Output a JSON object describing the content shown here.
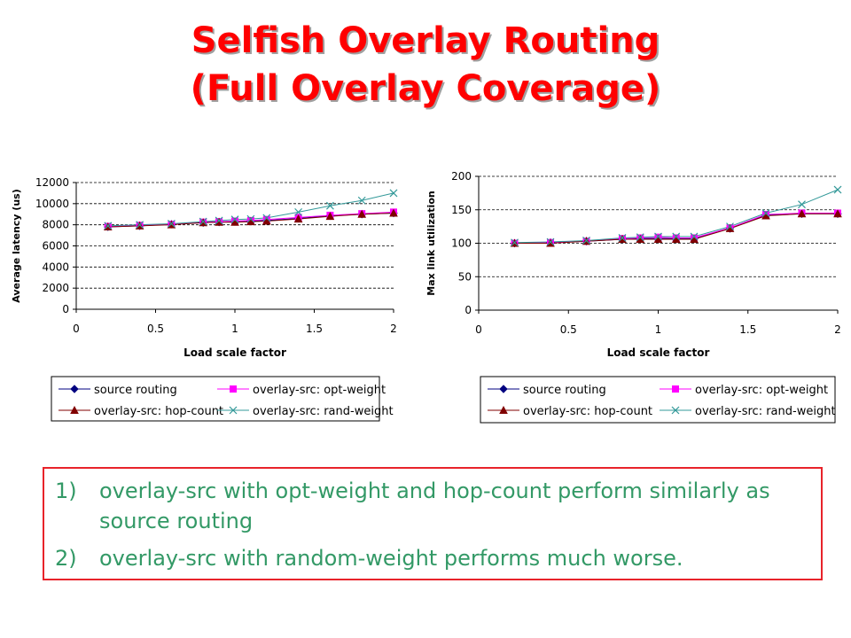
{
  "title": {
    "line1": "Selfish Overlay Routing",
    "line2": "(Full Overlay Coverage)"
  },
  "chart_data": [
    {
      "type": "line",
      "xlabel": "Load scale factor",
      "ylabel": "Average latency (us)",
      "xlim": [
        0,
        2
      ],
      "xticks": [
        "0",
        "0.5",
        "1",
        "1.5",
        "2"
      ],
      "ylim": [
        0,
        12000
      ],
      "yticks": [
        "0",
        "2000",
        "4000",
        "6000",
        "8000",
        "10000",
        "12000"
      ],
      "grid": "horizontal dashed",
      "legend_position": "below",
      "series": [
        {
          "name": "source routing",
          "color": "#000080",
          "marker": "diamond",
          "x": [
            0.2,
            0.4,
            0.6,
            0.8,
            0.9,
            1.0,
            1.1,
            1.2,
            1.4,
            1.6,
            1.8,
            2.0
          ],
          "y": [
            7800,
            7900,
            8050,
            8200,
            8250,
            8300,
            8350,
            8400,
            8600,
            8850,
            9000,
            9100
          ]
        },
        {
          "name": "overlay-src: opt-weight",
          "color": "#ff00ff",
          "marker": "square",
          "x": [
            0.2,
            0.4,
            0.6,
            0.8,
            0.9,
            1.0,
            1.1,
            1.2,
            1.4,
            1.6,
            1.8,
            2.0
          ],
          "y": [
            7850,
            7950,
            8050,
            8250,
            8300,
            8350,
            8400,
            8500,
            8700,
            8900,
            9050,
            9200
          ]
        },
        {
          "name": "overlay-src: hop-count",
          "color": "#800000",
          "marker": "triangle",
          "x": [
            0.2,
            0.4,
            0.6,
            0.8,
            0.9,
            1.0,
            1.1,
            1.2,
            1.4,
            1.6,
            1.8,
            2.0
          ],
          "y": [
            7800,
            7900,
            8000,
            8200,
            8250,
            8250,
            8300,
            8350,
            8550,
            8800,
            9000,
            9100
          ]
        },
        {
          "name": "overlay-src: rand-weight",
          "color": "#339999",
          "marker": "x",
          "x": [
            0.2,
            0.4,
            0.6,
            0.8,
            0.9,
            1.0,
            1.1,
            1.2,
            1.4,
            1.6,
            1.8,
            2.0
          ],
          "y": [
            7900,
            8000,
            8100,
            8300,
            8400,
            8500,
            8550,
            8650,
            9200,
            9800,
            10300,
            11000
          ]
        }
      ]
    },
    {
      "type": "line",
      "xlabel": "Load scale factor",
      "ylabel": "Max link utilization",
      "xlim": [
        0,
        2
      ],
      "xticks": [
        "0",
        "0.5",
        "1",
        "1.5",
        "2"
      ],
      "ylim": [
        0,
        200
      ],
      "yticks": [
        "0",
        "50",
        "100",
        "150",
        "200"
      ],
      "grid": "horizontal dashed",
      "legend_position": "below",
      "series": [
        {
          "name": "source routing",
          "color": "#000080",
          "marker": "diamond",
          "x": [
            0.2,
            0.4,
            0.6,
            0.8,
            0.9,
            1.0,
            1.1,
            1.2,
            1.4,
            1.6,
            1.8,
            2.0
          ],
          "y": [
            100,
            101,
            103,
            106,
            107,
            107,
            107,
            107,
            122,
            142,
            144,
            144
          ]
        },
        {
          "name": "overlay-src: opt-weight",
          "color": "#ff00ff",
          "marker": "square",
          "x": [
            0.2,
            0.4,
            0.6,
            0.8,
            0.9,
            1.0,
            1.1,
            1.2,
            1.4,
            1.6,
            1.8,
            2.0
          ],
          "y": [
            100,
            101,
            103,
            107,
            108,
            109,
            108,
            108,
            123,
            143,
            145,
            145
          ]
        },
        {
          "name": "overlay-src: hop-count",
          "color": "#800000",
          "marker": "triangle",
          "x": [
            0.2,
            0.4,
            0.6,
            0.8,
            0.9,
            1.0,
            1.1,
            1.2,
            1.4,
            1.6,
            1.8,
            2.0
          ],
          "y": [
            100,
            100,
            103,
            106,
            106,
            106,
            106,
            106,
            122,
            141,
            144,
            144
          ]
        },
        {
          "name": "overlay-src: rand-weight",
          "color": "#339999",
          "marker": "x",
          "x": [
            0.2,
            0.4,
            0.6,
            0.8,
            0.9,
            1.0,
            1.1,
            1.2,
            1.4,
            1.6,
            1.8,
            2.0
          ],
          "y": [
            101,
            102,
            104,
            108,
            109,
            110,
            110,
            110,
            125,
            145,
            158,
            180
          ]
        }
      ]
    }
  ],
  "notes": [
    {
      "num": "1)",
      "text": "overlay-src with opt-weight and hop-count perform similarly as source routing"
    },
    {
      "num": "2)",
      "text": "overlay-src with random-weight performs much worse."
    }
  ]
}
